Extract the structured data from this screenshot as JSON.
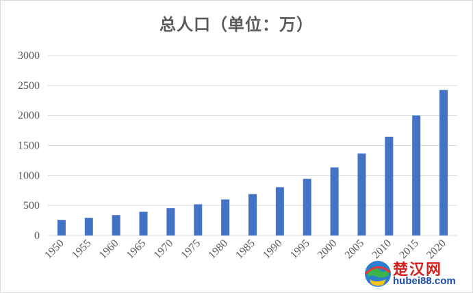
{
  "chart_data": {
    "type": "bar",
    "title": "总人口（单位：万）",
    "xlabel": "",
    "ylabel": "",
    "categories": [
      "1950",
      "1955",
      "1960",
      "1965",
      "1970",
      "1975",
      "1980",
      "1985",
      "1990",
      "1995",
      "2000",
      "2005",
      "2010",
      "2015",
      "2020"
    ],
    "series": [
      {
        "values": [
          260,
          295,
          340,
          395,
          455,
          520,
          600,
          690,
          805,
          945,
          1135,
          1365,
          1645,
          2000,
          2425
        ]
      }
    ],
    "ylim": [
      0,
      3000
    ],
    "yticks": [
      0,
      500,
      1000,
      1500,
      2000,
      2500,
      3000
    ],
    "grid": true,
    "legend": "none",
    "colors": {
      "bar": "#4472c4",
      "grid": "#d9d9d9",
      "text": "#595959"
    }
  },
  "watermark": {
    "brand": "楚汉网",
    "url": "hubei88.com"
  }
}
